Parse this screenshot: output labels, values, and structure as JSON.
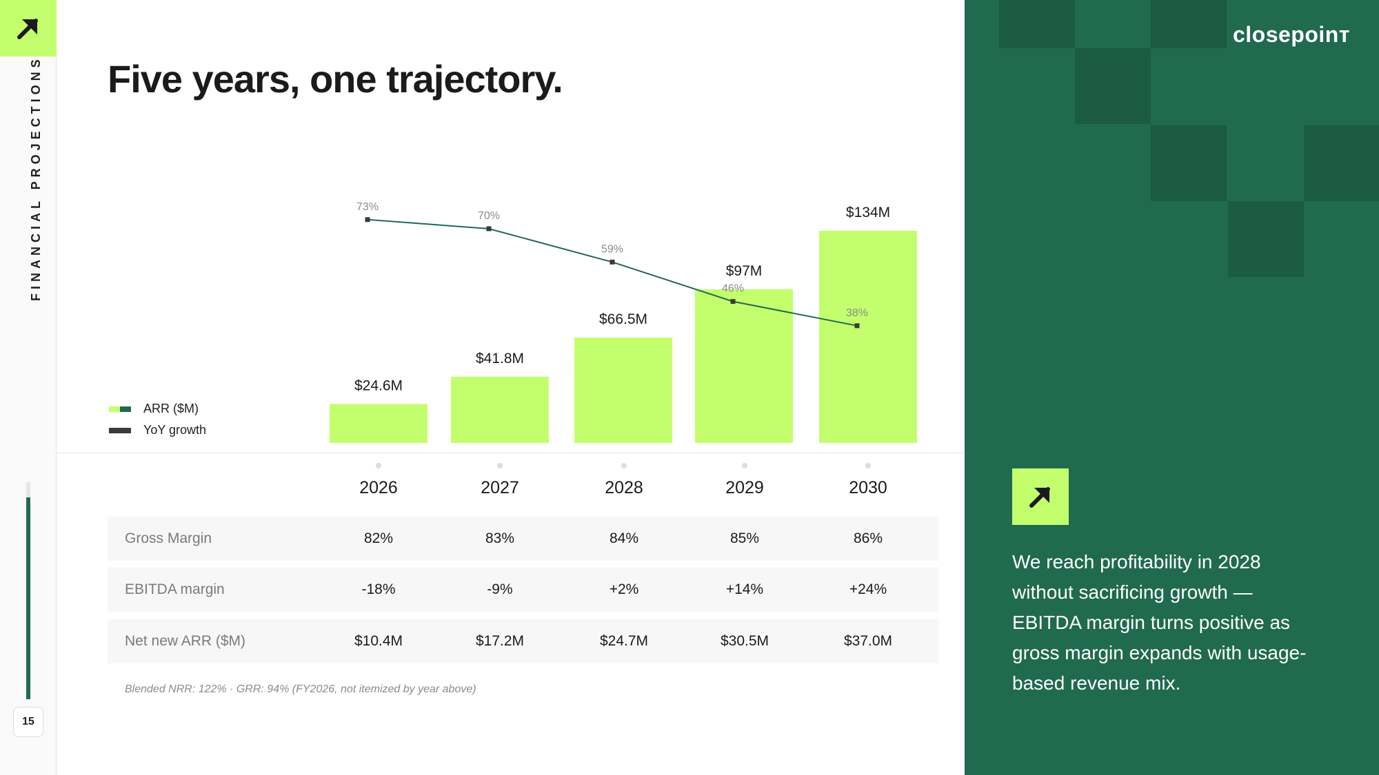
{
  "colors": {
    "accent": "#c3ff6d",
    "brand_green": "#206a4f",
    "dark_green": "#1b5a43",
    "line": "#1f6a4e"
  },
  "rail": {
    "logo_icon": "arrow-up-right-icon",
    "section_label": "FINANCIAL PROJECTIONS",
    "page_number": "15",
    "progress_fraction": 0.93
  },
  "title": "Five years, one trajectory.",
  "legend": {
    "arr": "ARR ($M)",
    "yoy": "YoY growth"
  },
  "chart_data": {
    "type": "bar",
    "categories": [
      "2026",
      "2027",
      "2028",
      "2029",
      "2030"
    ],
    "series": [
      {
        "name": "ARR ($M)",
        "type": "bar",
        "values": [
          24.6,
          41.8,
          66.5,
          97,
          134
        ],
        "labels": [
          "$24.6M",
          "$41.8M",
          "$66.5M",
          "$97M",
          "$134M"
        ]
      },
      {
        "name": "YoY growth",
        "type": "line",
        "values": [
          73,
          70,
          59,
          46,
          38
        ],
        "labels": [
          "73%",
          "70%",
          "59%",
          "46%",
          "38%"
        ]
      }
    ],
    "ylim": [
      0,
      134
    ]
  },
  "table": {
    "years": [
      "2026",
      "2027",
      "2028",
      "2029",
      "2030"
    ],
    "rows": [
      {
        "label": "Gross Margin",
        "values": [
          "82%",
          "83%",
          "84%",
          "85%",
          "86%"
        ]
      },
      {
        "label": "EBITDA margin",
        "values": [
          "-18%",
          "-9%",
          "+2%",
          "+14%",
          "+24%"
        ]
      },
      {
        "label": "Net new ARR ($M)",
        "values": [
          "$10.4M",
          "$17.2M",
          "$24.7M",
          "$30.5M",
          "$37.0M"
        ]
      }
    ],
    "footnote": "Blended NRR: 122% · GRR: 94% (FY2026, not itemized by year above)"
  },
  "panel": {
    "brand": "closepoinт",
    "badge_icon": "arrow-up-right-icon",
    "text": "We reach profitability in 2028 without sacrificing growth — EBITDA margin turns positive as gross margin expands with usage-based revenue mix."
  }
}
